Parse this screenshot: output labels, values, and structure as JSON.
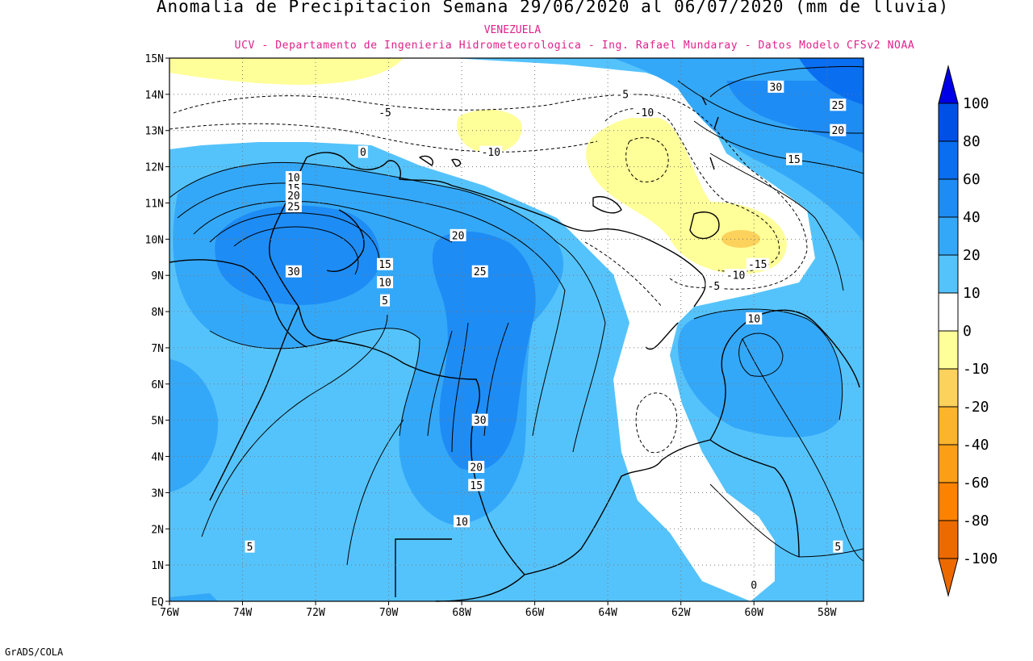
{
  "title": "Anomalia de Precipitacion Semana 29/06/2020 al 06/07/2020 (mm de lluvia)",
  "region": "VENEZUELA",
  "source": "UCV - Departamento de Ingenieria Hidrometeorologica - Ing. Rafael Mundaray - Datos Modelo CFSv2 NOAA",
  "footer": "GrADS/COLA",
  "map": {
    "lon_range": [
      -76,
      -57
    ],
    "lat_range": [
      0,
      15
    ],
    "lat_ticks": [
      "EQ",
      "1N",
      "2N",
      "3N",
      "4N",
      "5N",
      "6N",
      "7N",
      "8N",
      "9N",
      "10N",
      "11N",
      "12N",
      "13N",
      "14N",
      "15N"
    ],
    "lon_ticks": [
      "76W",
      "74W",
      "72W",
      "70W",
      "68W",
      "66W",
      "64W",
      "62W",
      "60W",
      "58W"
    ],
    "grid": "dotted"
  },
  "legend": {
    "labels": [
      "100",
      "80",
      "60",
      "40",
      "20",
      "10",
      "0",
      "-10",
      "-20",
      "-40",
      "-60",
      "-80",
      "-100"
    ],
    "colors": [
      "#0000e6",
      "#0050e6",
      "#0a6ef0",
      "#1e8cf5",
      "#34a8f8",
      "#55c3fb",
      "#ffffff",
      "#ffff99",
      "#fcd15c",
      "#fcb42d",
      "#fc9f16",
      "#fc8200",
      "#ec6a00"
    ]
  },
  "contour_labels": [
    {
      "text": "30",
      "lon": -59.4,
      "lat": 14.2
    },
    {
      "text": "25",
      "lon": -57.7,
      "lat": 13.7
    },
    {
      "text": "20",
      "lon": -57.7,
      "lat": 13.0
    },
    {
      "text": "15",
      "lon": -58.9,
      "lat": 12.2
    },
    {
      "text": "-5",
      "lon": -70.1,
      "lat": 13.5
    },
    {
      "text": "-5",
      "lon": -63.6,
      "lat": 14.0
    },
    {
      "text": "-10",
      "lon": -63.0,
      "lat": 13.5
    },
    {
      "text": "-10",
      "lon": -67.2,
      "lat": 12.4
    },
    {
      "text": "0",
      "lon": -70.7,
      "lat": 12.4
    },
    {
      "text": "10",
      "lon": -72.6,
      "lat": 11.7
    },
    {
      "text": "15",
      "lon": -72.6,
      "lat": 11.4
    },
    {
      "text": "20",
      "lon": -72.6,
      "lat": 11.2
    },
    {
      "text": "25",
      "lon": -72.6,
      "lat": 10.9
    },
    {
      "text": "20",
      "lon": -68.1,
      "lat": 10.1
    },
    {
      "text": "30",
      "lon": -72.6,
      "lat": 9.1
    },
    {
      "text": "25",
      "lon": -67.5,
      "lat": 9.1
    },
    {
      "text": "15",
      "lon": -70.1,
      "lat": 9.3
    },
    {
      "text": "10",
      "lon": -70.1,
      "lat": 8.8
    },
    {
      "text": "5",
      "lon": -70.1,
      "lat": 8.3
    },
    {
      "text": "-15",
      "lon": -59.9,
      "lat": 9.3
    },
    {
      "text": "-10",
      "lon": -60.5,
      "lat": 9.0
    },
    {
      "text": "-5",
      "lon": -61.1,
      "lat": 8.7
    },
    {
      "text": "10",
      "lon": -60.0,
      "lat": 7.8
    },
    {
      "text": "30",
      "lon": -67.5,
      "lat": 5.0
    },
    {
      "text": "20",
      "lon": -67.6,
      "lat": 3.7
    },
    {
      "text": "15",
      "lon": -67.6,
      "lat": 3.2
    },
    {
      "text": "10",
      "lon": -68.0,
      "lat": 2.2
    },
    {
      "text": "5",
      "lon": -73.8,
      "lat": 1.5
    },
    {
      "text": "5",
      "lon": -57.7,
      "lat": 1.5
    },
    {
      "text": "0",
      "lon": -60.0,
      "lat": 0.45
    }
  ]
}
